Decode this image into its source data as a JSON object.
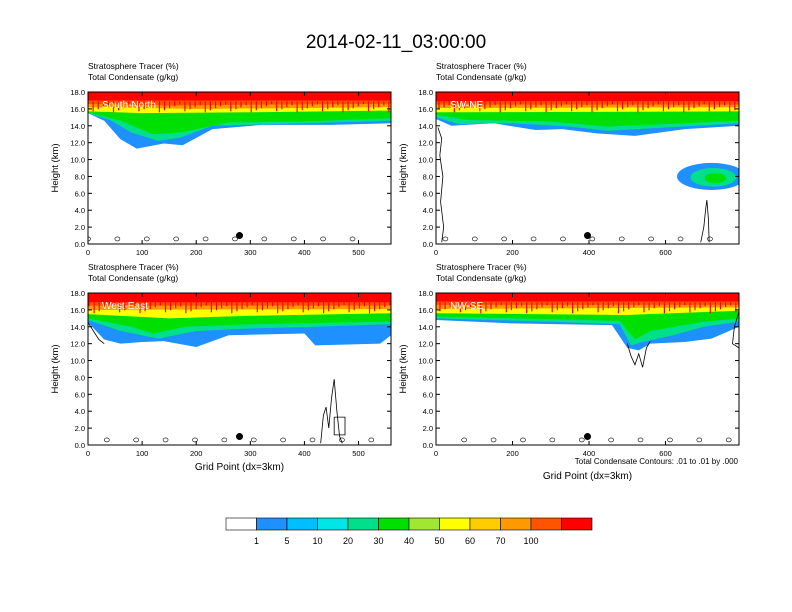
{
  "title": "2014-02-11_03:00:00",
  "colors": {
    "levels": [
      "#ffffff",
      "#1e90ff",
      "#00bfff",
      "#00e5e5",
      "#00e08a",
      "#00e000",
      "#a0e632",
      "#ffff00",
      "#ffcc00",
      "#ff9900",
      "#ff5500",
      "#ff0000"
    ],
    "contour": "#000000",
    "frame": "#000000"
  },
  "colorbar": {
    "labels": [
      "1",
      "5",
      "10",
      "20",
      "30",
      "40",
      "50",
      "60",
      "70",
      "100"
    ]
  },
  "footnote": "Total Condensate Contours: .01 to .01 by .000",
  "chart_data": [
    {
      "type": "heatmap",
      "panel": "South-North",
      "title_line1": "Stratosphere Tracer   (%)",
      "title_line2": "Total Condensate   (g/kg)",
      "ylabel": "Height (km)",
      "xlabel": "",
      "xlim": [
        0,
        560
      ],
      "ylim": [
        0,
        18
      ],
      "xticks": [
        "0",
        "100",
        "200",
        "300",
        "400",
        "500"
      ],
      "yticks": [
        "0.0",
        "2.0",
        "4.0",
        "6.0",
        "8.0",
        "10.0",
        "12.0",
        "14.0",
        "16.0",
        "18.0"
      ],
      "marker": {
        "x": 280,
        "y": 1.0
      },
      "layers": [
        {
          "level": 11,
          "start": 16.9,
          "pts": [
            [
              0,
              17.0
            ],
            [
              560,
              17.0
            ]
          ]
        },
        {
          "level": 10,
          "start": 16.5,
          "pts": [
            [
              0,
              16.6
            ],
            [
              150,
              16.4
            ],
            [
              300,
              16.5
            ],
            [
              560,
              16.6
            ]
          ]
        },
        {
          "level": 9,
          "start": 16.2,
          "pts": [
            [
              0,
              16.2
            ],
            [
              200,
              16.0
            ],
            [
              400,
              16.1
            ],
            [
              560,
              16.2
            ]
          ]
        },
        {
          "level": 7,
          "start": 15.7,
          "pts": [
            [
              0,
              15.7
            ],
            [
              100,
              15.5
            ],
            [
              300,
              15.6
            ],
            [
              560,
              15.8
            ]
          ]
        },
        {
          "level": 5,
          "start": 15.3,
          "pts": [
            [
              0,
              15.6
            ],
            [
              60,
              14.6
            ],
            [
              120,
              13.0
            ],
            [
              170,
              13.2
            ],
            [
              260,
              14.4
            ],
            [
              400,
              14.5
            ],
            [
              560,
              14.9
            ]
          ]
        },
        {
          "level": 4,
          "start": 15.0,
          "pts": [
            [
              0,
              15.5
            ],
            [
              40,
              14.7
            ],
            [
              80,
              13.2
            ],
            [
              130,
              12.2
            ],
            [
              170,
              12.6
            ],
            [
              230,
              14.0
            ],
            [
              400,
              14.3
            ],
            [
              560,
              14.6
            ]
          ]
        },
        {
          "level": 1,
          "start": 15.0,
          "pts": [
            [
              0,
              15.5
            ],
            [
              30,
              14.6
            ],
            [
              60,
              12.4
            ],
            [
              90,
              11.3
            ],
            [
              140,
              11.9
            ],
            [
              175,
              11.7
            ],
            [
              230,
              13.6
            ],
            [
              320,
              14.1
            ],
            [
              450,
              14.1
            ],
            [
              560,
              14.3
            ]
          ]
        }
      ],
      "blobs": [],
      "contours": []
    },
    {
      "type": "heatmap",
      "panel": "SW-NE",
      "title_line1": "Stratosphere Tracer   (%)",
      "title_line2": "Total Condensate   (g/kg)",
      "ylabel": "Height (km)",
      "xlabel": "",
      "xlim": [
        0,
        792
      ],
      "ylim": [
        0,
        18
      ],
      "xticks": [
        "0",
        "200",
        "400",
        "600"
      ],
      "yticks": [
        "0.0",
        "2.0",
        "4.0",
        "6.0",
        "8.0",
        "10.0",
        "12.0",
        "14.0",
        "16.0",
        "18.0"
      ],
      "marker": {
        "x": 396,
        "y": 1.0
      },
      "layers": [
        {
          "level": 11,
          "start": 16.8,
          "pts": [
            [
              0,
              16.9
            ],
            [
              792,
              16.9
            ]
          ]
        },
        {
          "level": 10,
          "start": 16.4,
          "pts": [
            [
              0,
              16.5
            ],
            [
              792,
              16.5
            ]
          ]
        },
        {
          "level": 9,
          "start": 16.1,
          "pts": [
            [
              0,
              16.1
            ],
            [
              792,
              16.2
            ]
          ]
        },
        {
          "level": 7,
          "start": 15.6,
          "pts": [
            [
              0,
              15.6
            ],
            [
              792,
              15.7
            ]
          ]
        },
        {
          "level": 5,
          "start": 15.0,
          "pts": [
            [
              0,
              15.3
            ],
            [
              80,
              14.7
            ],
            [
              300,
              14.5
            ],
            [
              450,
              13.9
            ],
            [
              600,
              14.2
            ],
            [
              792,
              14.6
            ]
          ]
        },
        {
          "level": 4,
          "start": 14.8,
          "pts": [
            [
              0,
              15.0
            ],
            [
              60,
              14.2
            ],
            [
              200,
              14.3
            ],
            [
              350,
              13.9
            ],
            [
              450,
              13.4
            ],
            [
              600,
              13.8
            ],
            [
              792,
              14.3
            ]
          ]
        },
        {
          "level": 1,
          "start": 14.6,
          "pts": [
            [
              0,
              14.8
            ],
            [
              40,
              14.0
            ],
            [
              150,
              14.3
            ],
            [
              260,
              13.5
            ],
            [
              330,
              13.6
            ],
            [
              420,
              13.1
            ],
            [
              520,
              12.8
            ],
            [
              650,
              13.6
            ],
            [
              792,
              14.0
            ]
          ]
        }
      ],
      "blobs": [
        {
          "level": 1,
          "cx": 720,
          "cy": 8.0,
          "rx": 90,
          "ry": 1.6
        },
        {
          "level": 4,
          "cx": 725,
          "cy": 7.9,
          "rx": 60,
          "ry": 1.1
        },
        {
          "level": 5,
          "cx": 730,
          "cy": 7.8,
          "rx": 28,
          "ry": 0.6
        }
      ],
      "contours": [
        [
          [
            692,
            0.2
          ],
          [
            700,
            2.0
          ],
          [
            705,
            4.2
          ],
          [
            708,
            5.2
          ],
          [
            712,
            3.0
          ],
          [
            714,
            0.2
          ]
        ],
        [
          [
            5,
            13.8
          ],
          [
            15,
            12.5
          ],
          [
            10,
            10.5
          ],
          [
            18,
            8.0
          ],
          [
            12,
            5.0
          ],
          [
            20,
            2.0
          ],
          [
            15,
            0.2
          ]
        ]
      ]
    },
    {
      "type": "heatmap",
      "panel": "West-East",
      "title_line1": "Stratosphere Tracer   (%)",
      "title_line2": "Total Condensate   (g/kg)",
      "ylabel": "Height (km)",
      "xlabel": "Grid Point (dx=3km)",
      "xlim": [
        0,
        560
      ],
      "ylim": [
        0,
        18
      ],
      "xticks": [
        "0",
        "100",
        "200",
        "300",
        "400",
        "500"
      ],
      "yticks": [
        "0.0",
        "2.0",
        "4.0",
        "6.0",
        "8.0",
        "10.0",
        "12.0",
        "14.0",
        "16.0",
        "18.0"
      ],
      "marker": {
        "x": 280,
        "y": 1.0
      },
      "layers": [
        {
          "level": 11,
          "start": 16.8,
          "pts": [
            [
              0,
              16.9
            ],
            [
              560,
              16.9
            ]
          ]
        },
        {
          "level": 10,
          "start": 16.4,
          "pts": [
            [
              0,
              16.5
            ],
            [
              560,
              16.5
            ]
          ]
        },
        {
          "level": 9,
          "start": 16.0,
          "pts": [
            [
              0,
              16.0
            ],
            [
              560,
              16.1
            ]
          ]
        },
        {
          "level": 7,
          "start": 15.4,
          "pts": [
            [
              0,
              15.5
            ],
            [
              150,
              15.0
            ],
            [
              300,
              15.3
            ],
            [
              560,
              15.6
            ]
          ]
        },
        {
          "level": 5,
          "start": 14.8,
          "pts": [
            [
              0,
              15.0
            ],
            [
              80,
              14.0
            ],
            [
              120,
              13.2
            ],
            [
              180,
              14.0
            ],
            [
              300,
              14.3
            ],
            [
              560,
              14.6
            ]
          ]
        },
        {
          "level": 4,
          "start": 14.5,
          "pts": [
            [
              0,
              14.8
            ],
            [
              60,
              13.5
            ],
            [
              130,
              12.6
            ],
            [
              200,
              13.5
            ],
            [
              300,
              13.8
            ],
            [
              420,
              14.0
            ],
            [
              560,
              14.3
            ]
          ]
        },
        {
          "level": 1,
          "start": 14.3,
          "pts": [
            [
              0,
              14.5
            ],
            [
              30,
              12.5
            ],
            [
              60,
              12.0
            ],
            [
              100,
              12.2
            ],
            [
              140,
              12.3
            ],
            [
              200,
              11.6
            ],
            [
              260,
              13.0
            ],
            [
              400,
              13.2
            ],
            [
              420,
              11.8
            ],
            [
              540,
              12.0
            ],
            [
              560,
              13.0
            ]
          ]
        }
      ],
      "blobs": [],
      "contours": [
        [
          [
            430,
            0.2
          ],
          [
            435,
            3.5
          ],
          [
            440,
            4.5
          ],
          [
            445,
            2.0
          ],
          [
            450,
            5.5
          ],
          [
            455,
            7.8
          ],
          [
            460,
            4.0
          ],
          [
            465,
            1.0
          ],
          [
            470,
            0.2
          ]
        ],
        [
          [
            455,
            3.3
          ],
          [
            475,
            3.3
          ],
          [
            475,
            1.2
          ],
          [
            455,
            1.2
          ],
          [
            455,
            3.3
          ]
        ],
        [
          [
            0,
            14.5
          ],
          [
            10,
            13.5
          ],
          [
            20,
            12.5
          ],
          [
            30,
            12.0
          ]
        ]
      ]
    },
    {
      "type": "heatmap",
      "panel": "NW-SE",
      "title_line1": "Stratosphere Tracer   (%)",
      "title_line2": "Total Condensate   (g/kg)",
      "ylabel": "Height (km)",
      "xlabel": "Grid Point (dx=3km)",
      "xlim": [
        0,
        792
      ],
      "ylim": [
        0,
        18
      ],
      "xticks": [
        "0",
        "200",
        "400",
        "600"
      ],
      "yticks": [
        "0.0",
        "2.0",
        "4.0",
        "6.0",
        "8.0",
        "10.0",
        "12.0",
        "14.0",
        "16.0",
        "18.0"
      ],
      "marker": {
        "x": 396,
        "y": 1.0
      },
      "layers": [
        {
          "level": 11,
          "start": 16.9,
          "pts": [
            [
              0,
              17.0
            ],
            [
              792,
              17.0
            ]
          ]
        },
        {
          "level": 10,
          "start": 16.5,
          "pts": [
            [
              0,
              16.6
            ],
            [
              792,
              16.6
            ]
          ]
        },
        {
          "level": 9,
          "start": 16.1,
          "pts": [
            [
              0,
              16.1
            ],
            [
              792,
              16.3
            ]
          ]
        },
        {
          "level": 7,
          "start": 15.6,
          "pts": [
            [
              0,
              15.6
            ],
            [
              500,
              15.4
            ],
            [
              792,
              15.9
            ]
          ]
        },
        {
          "level": 5,
          "start": 15.0,
          "pts": [
            [
              0,
              15.2
            ],
            [
              300,
              14.9
            ],
            [
              480,
              14.7
            ],
            [
              520,
              12.5
            ],
            [
              560,
              13.5
            ],
            [
              700,
              14.6
            ],
            [
              792,
              15.0
            ]
          ]
        },
        {
          "level": 4,
          "start": 14.8,
          "pts": [
            [
              0,
              15.0
            ],
            [
              300,
              14.6
            ],
            [
              480,
              14.3
            ],
            [
              510,
              11.8
            ],
            [
              540,
              12.2
            ],
            [
              620,
              13.0
            ],
            [
              700,
              14.0
            ],
            [
              792,
              14.6
            ]
          ]
        },
        {
          "level": 1,
          "start": 14.6,
          "pts": [
            [
              0,
              14.8
            ],
            [
              200,
              14.4
            ],
            [
              460,
              14.2
            ],
            [
              500,
              11.5
            ],
            [
              530,
              11.2
            ],
            [
              560,
              12.0
            ],
            [
              650,
              12.2
            ],
            [
              720,
              12.6
            ],
            [
              792,
              14.0
            ]
          ]
        }
      ],
      "blobs": [],
      "contours": [
        [
          [
            500,
            12.0
          ],
          [
            510,
            10.5
          ],
          [
            520,
            9.5
          ],
          [
            530,
            10.8
          ],
          [
            540,
            9.2
          ],
          [
            550,
            11.5
          ],
          [
            560,
            12.3
          ]
        ],
        [
          [
            792,
            15.8
          ],
          [
            780,
            14.0
          ],
          [
            775,
            12.0
          ],
          [
            792,
            11.5
          ]
        ]
      ]
    }
  ]
}
